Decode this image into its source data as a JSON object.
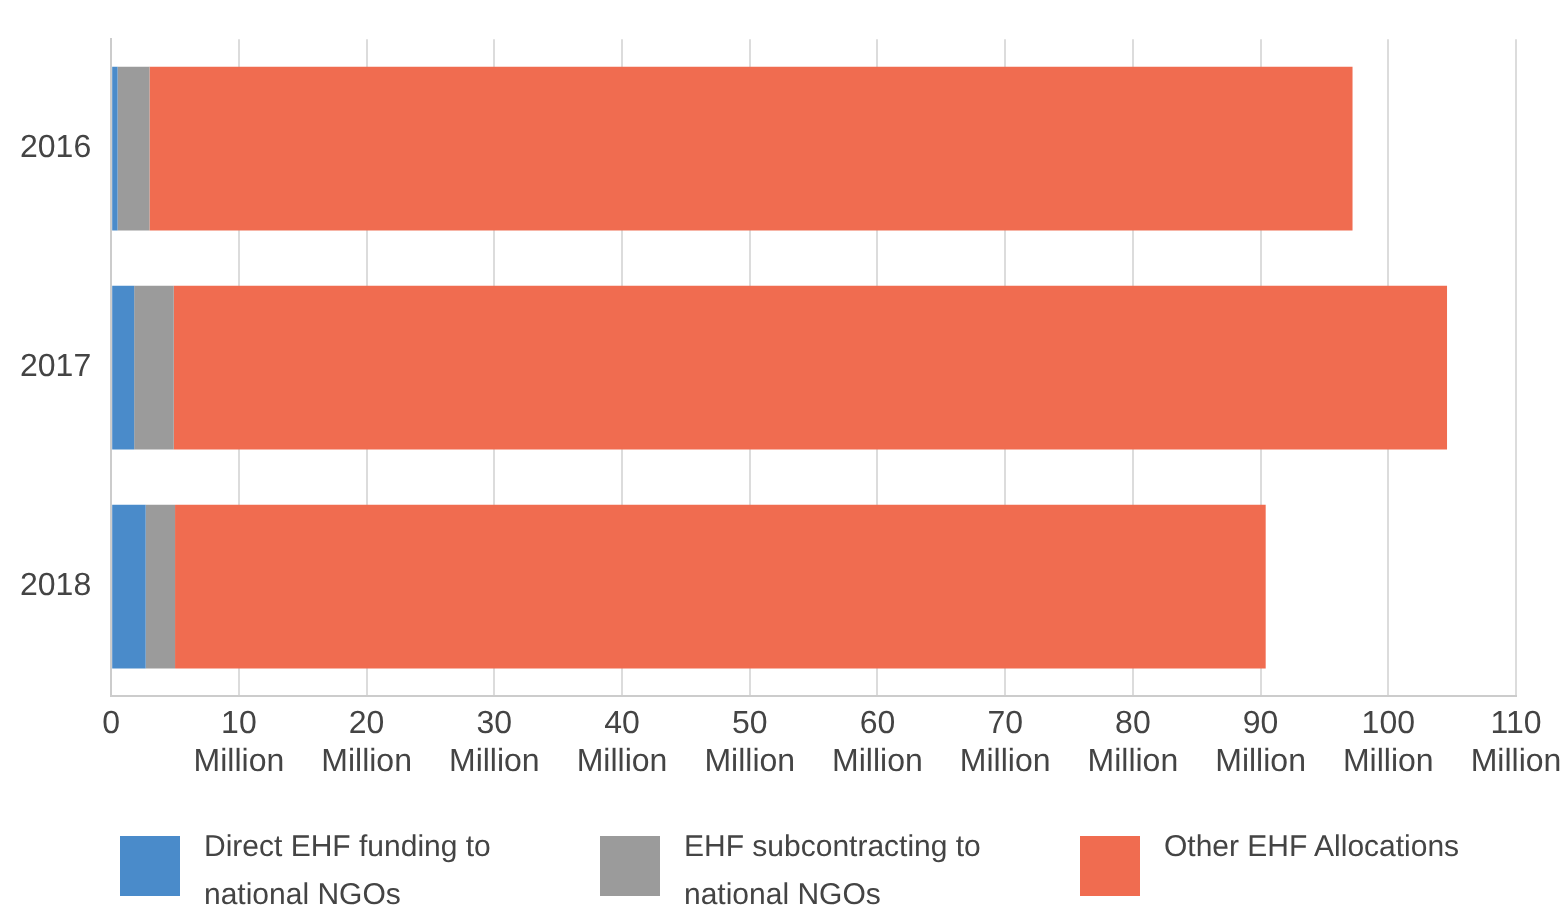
{
  "chart_data": {
    "type": "bar",
    "orientation": "horizontal",
    "stacked": true,
    "categories": [
      "2016",
      "2017",
      "2018"
    ],
    "series": [
      {
        "name": "Direct EHF funding to national NGOs",
        "color": "#4a8bca",
        "values": [
          0.5,
          1.8,
          2.7
        ]
      },
      {
        "name": "EHF subcontracting to national NGOs",
        "color": "#9b9b9b",
        "values": [
          2.5,
          3.1,
          2.3
        ]
      },
      {
        "name": "Other EHF Allocations",
        "color": "#f06c50",
        "values": [
          94.2,
          99.7,
          85.4
        ]
      }
    ],
    "xlim": [
      0,
      110
    ],
    "xticks": [
      0,
      {
        "value": 10,
        "label": "10 Million"
      },
      {
        "value": 20,
        "label": "20 Million"
      },
      {
        "value": 30,
        "label": "30 Million"
      },
      {
        "value": 40,
        "label": "40 Million"
      },
      {
        "value": 50,
        "label": "50 Million"
      },
      {
        "value": 60,
        "label": "60 Million"
      },
      {
        "value": 70,
        "label": "70 Million"
      },
      {
        "value": 80,
        "label": "80 Million"
      },
      {
        "value": 90,
        "label": "90 Million"
      },
      {
        "value": 100,
        "label": "100 Million"
      },
      {
        "value": 110,
        "label": "110 Million"
      }
    ],
    "grid": "x",
    "legend": "bottom"
  }
}
